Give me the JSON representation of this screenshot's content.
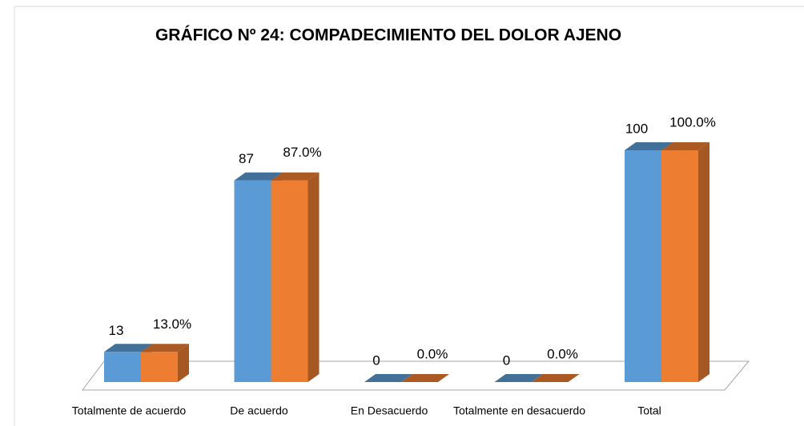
{
  "chart_data": {
    "type": "bar3d",
    "title": "GRÁFICO  Nº 24:  COMPADECIMIENTO DEL DOLOR AJENO",
    "categories": [
      "Totalmente de acuerdo",
      "De acuerdo",
      "En Desacuerdo",
      "Totalmente en desacuerdo",
      "Total"
    ],
    "series": [
      {
        "color": "#5b9bd5",
        "values": [
          13,
          87,
          0,
          0,
          100
        ]
      },
      {
        "color": "#ed7d31",
        "values": [
          13.0,
          87.0,
          0.0,
          0.0,
          100.0
        ],
        "value_labels": [
          "13.0%",
          "87.0%",
          "0.0%",
          "0.0%",
          "100.0%"
        ]
      }
    ]
  }
}
